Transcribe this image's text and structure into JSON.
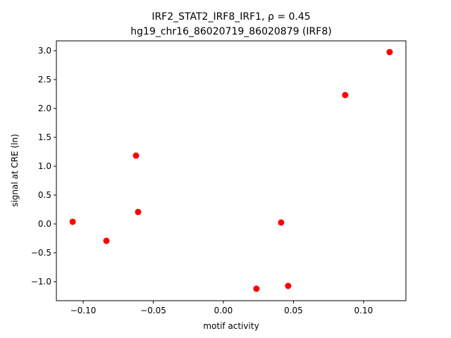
{
  "chart_data": {
    "type": "scatter",
    "title": "IRF2_STAT2_IRF8_IRF1, ρ = 0.45",
    "subtitle": "hg19_chr16_86020719_86020879 (IRF8)",
    "x_label": "motif activity",
    "y_label": "signal at CRE (ln)",
    "color": "#ff0000",
    "x": [
      -0.1075,
      -0.0834,
      -0.0623,
      -0.0608,
      0.0236,
      0.0412,
      0.0462,
      0.0869,
      0.1186
    ],
    "values": [
      0.037,
      -0.293,
      1.183,
      0.207,
      -1.122,
      0.024,
      -1.073,
      2.232,
      2.976
    ],
    "xlim": [
      -0.1191,
      0.1302
    ],
    "ylim": [
      -1.329,
      3.171
    ],
    "xticks": [
      {
        "value": -0.1,
        "label": "−0.10"
      },
      {
        "value": -0.05,
        "label": "−0.05"
      },
      {
        "value": 0,
        "label": "0.00"
      },
      {
        "value": 0.05,
        "label": "0.05"
      },
      {
        "value": 0.1,
        "label": "0.10"
      }
    ],
    "yticks": [
      {
        "value": -1,
        "label": "−1.0"
      },
      {
        "value": -0.5,
        "label": "−0.5"
      },
      {
        "value": 0,
        "label": "0.0"
      },
      {
        "value": 0.5,
        "label": "0.5"
      },
      {
        "value": 1,
        "label": "1.0"
      },
      {
        "value": 1.5,
        "label": "1.5"
      },
      {
        "value": 2,
        "label": "2.0"
      },
      {
        "value": 2.5,
        "label": "2.5"
      },
      {
        "value": 3,
        "label": "3.0"
      }
    ]
  }
}
